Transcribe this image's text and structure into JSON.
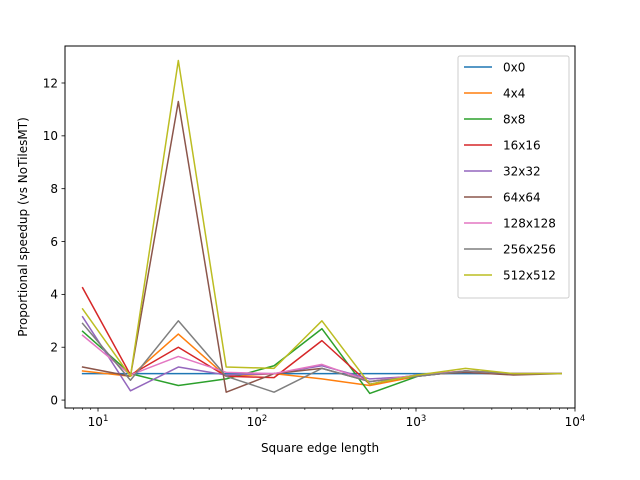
{
  "chart_data": {
    "type": "line",
    "xscale": "log",
    "xlim": [
      6.2,
      10000
    ],
    "ylim": [
      -0.3,
      13.4
    ],
    "xlabel": "Square edge length",
    "ylabel": "Proportional speedup (vs NoTilesMT)",
    "grid": false,
    "legend_position": "top-right",
    "x_ticks": [
      {
        "value": 10,
        "base": "10",
        "exp": "1"
      },
      {
        "value": 100,
        "base": "10",
        "exp": "2"
      },
      {
        "value": 1000,
        "base": "10",
        "exp": "3"
      },
      {
        "value": 10000,
        "base": "10",
        "exp": "4"
      }
    ],
    "y_ticks": [
      {
        "value": 0,
        "label": "0"
      },
      {
        "value": 2,
        "label": "2"
      },
      {
        "value": 4,
        "label": "4"
      },
      {
        "value": 6,
        "label": "6"
      },
      {
        "value": 8,
        "label": "8"
      },
      {
        "value": 10,
        "label": "10"
      },
      {
        "value": 12,
        "label": "12"
      }
    ],
    "x": [
      8,
      16,
      32,
      64,
      128,
      256,
      512,
      1024,
      2048,
      4096,
      8192
    ],
    "series": [
      {
        "name": "0x0",
        "color": "#1f77b4",
        "values": [
          1.0,
          1.0,
          1.0,
          1.0,
          1.0,
          1.0,
          1.0,
          1.0,
          1.0,
          1.0,
          1.0
        ]
      },
      {
        "name": "4x4",
        "color": "#ff7f0e",
        "values": [
          1.1,
          0.9,
          2.5,
          0.9,
          1.0,
          0.8,
          0.55,
          0.9,
          1.1,
          1.0,
          1.0
        ]
      },
      {
        "name": "8x8",
        "color": "#2ca02c",
        "values": [
          2.6,
          1.0,
          0.55,
          0.8,
          1.3,
          2.7,
          0.25,
          0.9,
          1.1,
          1.0,
          1.0
        ]
      },
      {
        "name": "16x16",
        "color": "#d62728",
        "values": [
          4.25,
          0.95,
          2.0,
          0.9,
          0.85,
          2.25,
          0.6,
          0.95,
          1.1,
          1.0,
          1.0
        ]
      },
      {
        "name": "32x32",
        "color": "#9467bd",
        "values": [
          3.15,
          0.35,
          1.25,
          0.95,
          1.0,
          1.3,
          0.8,
          0.9,
          1.1,
          1.0,
          1.0
        ]
      },
      {
        "name": "64x64",
        "color": "#8c564b",
        "values": [
          1.25,
          0.9,
          11.3,
          0.3,
          1.0,
          1.2,
          0.7,
          0.95,
          1.05,
          0.95,
          1.0
        ]
      },
      {
        "name": "128x128",
        "color": "#e377c2",
        "values": [
          2.45,
          0.95,
          1.65,
          1.05,
          1.0,
          1.35,
          0.7,
          0.95,
          1.1,
          1.0,
          1.0
        ]
      },
      {
        "name": "256x256",
        "color": "#7f7f7f",
        "values": [
          2.9,
          0.75,
          3.0,
          0.9,
          0.3,
          1.2,
          0.7,
          0.9,
          1.1,
          1.0,
          1.0
        ]
      },
      {
        "name": "512x512",
        "color": "#bcbd22",
        "values": [
          3.45,
          0.9,
          12.85,
          1.25,
          1.2,
          3.0,
          0.6,
          0.95,
          1.2,
          1.0,
          1.0
        ]
      }
    ]
  }
}
